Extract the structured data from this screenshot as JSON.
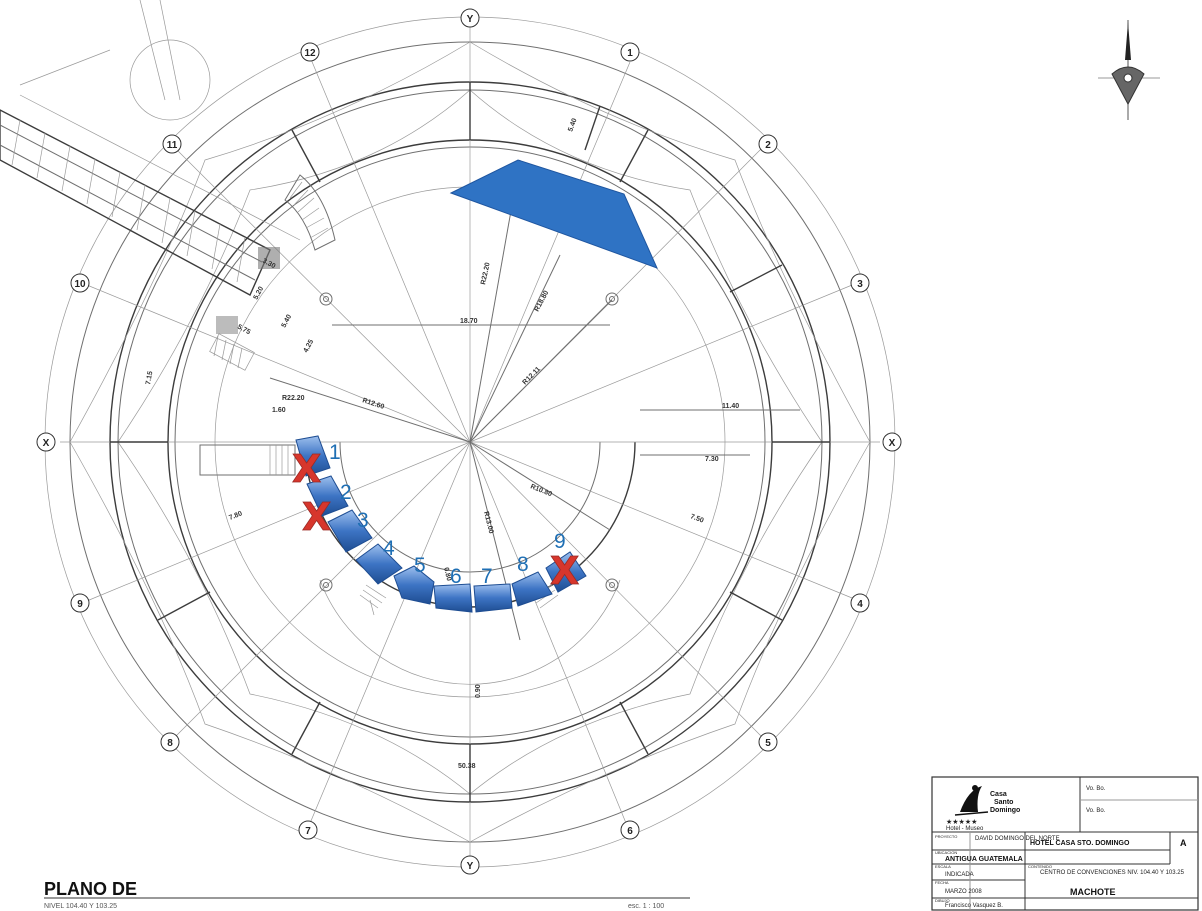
{
  "axis_labels": {
    "top": "Y",
    "top_right_1": "1",
    "right_2": "2",
    "right_3": "3",
    "right_x": "X",
    "right_4": "4",
    "right_5": "5",
    "bottom_6": "6",
    "bottom_y": "Y",
    "bottom_7": "7",
    "left_8": "8",
    "left_9": "9",
    "left_x": "X",
    "left_10": "10",
    "left_11": "11",
    "top_12": "12"
  },
  "dimensions": {
    "d1": "5.40",
    "d2": "R22.20",
    "d3": "R18.80",
    "d4": "R12.11",
    "d5": "18.70",
    "d6": "R22.20",
    "d7": "R12.60",
    "d8": "1.60",
    "d9": "11.40",
    "d10": "7.30",
    "d11": "R10.80",
    "d12": "7.50",
    "d13": "7.80",
    "d14": "7.15",
    "d15": "4.25",
    "d16": "5.40",
    "d17": "5.20",
    "d18": "3.30",
    "d19": "5.75",
    "d20": "R13.00",
    "d21": "0.80",
    "d22": "0.90",
    "d23": "50.38"
  },
  "seat_numbers": [
    "1",
    "2",
    "3",
    "4",
    "5",
    "6",
    "7",
    "8",
    "9"
  ],
  "unavailable_marks": [
    "X",
    "X",
    "X"
  ],
  "plan_title": "PLANO DE",
  "plan_subtitle": "NIVEL 104.40 Y 103.25",
  "plan_scale": "esc. 1 : 100",
  "title_block": {
    "logo_line1": "Casa",
    "logo_line2": "Santo",
    "logo_line3": "Domingo",
    "stars": "★★★★★",
    "logo_sub": "Hotel - Museo",
    "field_a": "Vo. Bo.",
    "field_b": "Vo. Bo.",
    "proyecto_label": "PROYECTO",
    "owner": "DAVID DOMINGO DEL NORTE",
    "project": "HOTEL CASA STO. DOMINGO",
    "sheet": "A",
    "ubicacion_label": "UBICACION",
    "location": "ANTIGUA GUATEMALA",
    "escala_label": "ESCALA",
    "scale": "INDICADA",
    "contenido_label": "CONTENIDO",
    "content": "CENTRO DE CONVENCIONES NIV. 104.40 Y 103.25",
    "fecha_label": "FECHA",
    "date": "MARZO 2008",
    "dibujo_label": "DIBUJO",
    "drawn_by": "Francisco Vasquez B.",
    "drawing_name": "MACHOTE"
  },
  "colors": {
    "stage": "#2f73c4",
    "seat": "#2d5fa8",
    "seat_light": "#8fb4e6",
    "x_mark": "#d7362c",
    "numbers": "#1f6fb4"
  }
}
